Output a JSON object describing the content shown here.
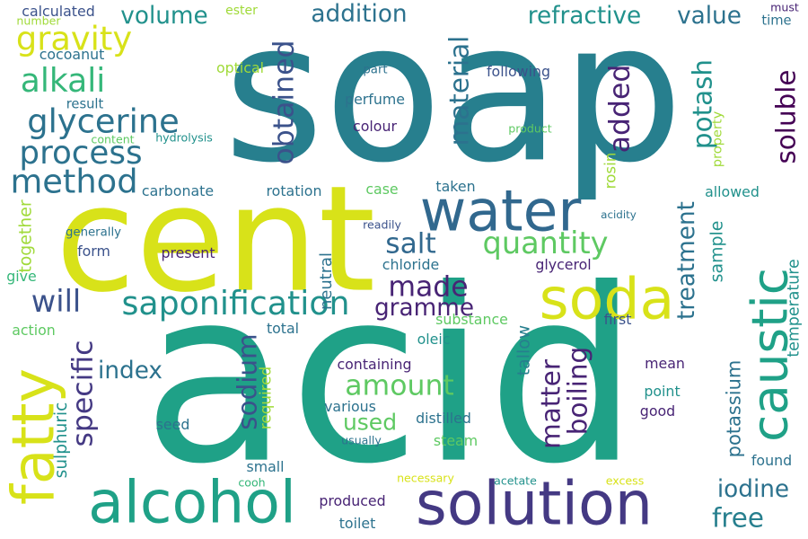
{
  "palette": {
    "yellow": "#d8e219",
    "yellow_green": "#a0da39",
    "light_green": "#5ec962",
    "green": "#35b779",
    "teal_green": "#1fa187",
    "teal": "#21918c",
    "steel_blue": "#277f8e",
    "blue": "#2c728e",
    "dark_blue": "#31688e",
    "indigo": "#3b528b",
    "purple_blue": "#443983",
    "deep_purple": "#482475",
    "violet": "#440154"
  },
  "words": [
    {
      "text": "soap",
      "color": "#277f8e",
      "vertical": false
    },
    {
      "text": "acid",
      "color": "#1fa187",
      "vertical": false
    },
    {
      "text": "cent",
      "color": "#d8e219",
      "vertical": false
    },
    {
      "text": "water",
      "color": "#31688e",
      "vertical": false
    },
    {
      "text": "solution",
      "color": "#443983",
      "vertical": false
    },
    {
      "text": "alcohol",
      "color": "#1fa187",
      "vertical": false
    },
    {
      "text": "caustic",
      "color": "#1fa187",
      "vertical": true
    },
    {
      "text": "soda",
      "color": "#d8e219",
      "vertical": false
    },
    {
      "text": "fatty",
      "color": "#d8e219",
      "vertical": true
    },
    {
      "text": "saponification",
      "color": "#21918c",
      "vertical": false
    },
    {
      "text": "glycerine",
      "color": "#2c728e",
      "vertical": false
    },
    {
      "text": "process",
      "color": "#2c728e",
      "vertical": false
    },
    {
      "text": "method",
      "color": "#2c728e",
      "vertical": false
    },
    {
      "text": "alkali",
      "color": "#35b779",
      "vertical": false
    },
    {
      "text": "gravity",
      "color": "#d8e219",
      "vertical": false
    },
    {
      "text": "obtained",
      "color": "#3b528b",
      "vertical": true
    },
    {
      "text": "material",
      "color": "#2c728e",
      "vertical": true
    },
    {
      "text": "added",
      "color": "#482475",
      "vertical": true
    },
    {
      "text": "potash",
      "color": "#21918c",
      "vertical": true
    },
    {
      "text": "soluble",
      "color": "#440154",
      "vertical": true
    },
    {
      "text": "quantity",
      "color": "#5ec962",
      "vertical": false
    },
    {
      "text": "salt",
      "color": "#31688e",
      "vertical": false
    },
    {
      "text": "will",
      "color": "#3b528b",
      "vertical": false
    },
    {
      "text": "made",
      "color": "#482475",
      "vertical": false
    },
    {
      "text": "gramme",
      "color": "#482475",
      "vertical": false
    },
    {
      "text": "specific",
      "color": "#443983",
      "vertical": true
    },
    {
      "text": "amount",
      "color": "#5ec962",
      "vertical": false
    },
    {
      "text": "used",
      "color": "#5ec962",
      "vertical": false
    },
    {
      "text": "sodium",
      "color": "#3b528b",
      "vertical": true
    },
    {
      "text": "matter",
      "color": "#482475",
      "vertical": true
    },
    {
      "text": "boiling",
      "color": "#482475",
      "vertical": true
    },
    {
      "text": "treatment",
      "color": "#2c728e",
      "vertical": true
    },
    {
      "text": "index",
      "color": "#2c728e",
      "vertical": false
    },
    {
      "text": "iodine",
      "color": "#2c728e",
      "vertical": false
    },
    {
      "text": "free",
      "color": "#277f8e",
      "vertical": false
    },
    {
      "text": "refractive",
      "color": "#21918c",
      "vertical": false
    },
    {
      "text": "value",
      "color": "#2c728e",
      "vertical": false
    },
    {
      "text": "addition",
      "color": "#2c728e",
      "vertical": false
    },
    {
      "text": "volume",
      "color": "#21918c",
      "vertical": false
    },
    {
      "text": "calculated",
      "color": "#3b528b",
      "vertical": false
    },
    {
      "text": "ester",
      "color": "#a0da39",
      "vertical": false
    },
    {
      "text": "number",
      "color": "#a0da39",
      "vertical": false
    },
    {
      "text": "cocoanut",
      "color": "#2c728e",
      "vertical": false
    },
    {
      "text": "optical",
      "color": "#a0da39",
      "vertical": false
    },
    {
      "text": "part",
      "color": "#2c728e",
      "vertical": false
    },
    {
      "text": "following",
      "color": "#3b528b",
      "vertical": false
    },
    {
      "text": "perfume",
      "color": "#2c728e",
      "vertical": false
    },
    {
      "text": "colour",
      "color": "#482475",
      "vertical": false
    },
    {
      "text": "result",
      "color": "#2c728e",
      "vertical": false
    },
    {
      "text": "content",
      "color": "#5ec962",
      "vertical": false
    },
    {
      "text": "hydrolysis",
      "color": "#21918c",
      "vertical": false
    },
    {
      "text": "product",
      "color": "#5ec962",
      "vertical": false
    },
    {
      "text": "property",
      "color": "#a0da39",
      "vertical": true
    },
    {
      "text": "rosin",
      "color": "#a0da39",
      "vertical": true
    },
    {
      "text": "must",
      "color": "#482475",
      "vertical": false
    },
    {
      "text": "time",
      "color": "#2c728e",
      "vertical": false
    },
    {
      "text": "carbonate",
      "color": "#2c728e",
      "vertical": false
    },
    {
      "text": "rotation",
      "color": "#2c728e",
      "vertical": false
    },
    {
      "text": "case",
      "color": "#5ec962",
      "vertical": false
    },
    {
      "text": "taken",
      "color": "#2c728e",
      "vertical": false
    },
    {
      "text": "allowed",
      "color": "#21918c",
      "vertical": false
    },
    {
      "text": "acidity",
      "color": "#2c728e",
      "vertical": false
    },
    {
      "text": "together",
      "color": "#a0da39",
      "vertical": true
    },
    {
      "text": "generally",
      "color": "#2c728e",
      "vertical": false
    },
    {
      "text": "readily",
      "color": "#3b528b",
      "vertical": false
    },
    {
      "text": "form",
      "color": "#3b528b",
      "vertical": false
    },
    {
      "text": "present",
      "color": "#482475",
      "vertical": false
    },
    {
      "text": "neutral",
      "color": "#2c728e",
      "vertical": true
    },
    {
      "text": "chloride",
      "color": "#2c728e",
      "vertical": false
    },
    {
      "text": "glycerol",
      "color": "#482475",
      "vertical": false
    },
    {
      "text": "sample",
      "color": "#21918c",
      "vertical": true
    },
    {
      "text": "give",
      "color": "#35b779",
      "vertical": false
    },
    {
      "text": "action",
      "color": "#5ec962",
      "vertical": false
    },
    {
      "text": "total",
      "color": "#2c728e",
      "vertical": false
    },
    {
      "text": "substance",
      "color": "#5ec962",
      "vertical": false
    },
    {
      "text": "first",
      "color": "#3b528b",
      "vertical": false
    },
    {
      "text": "oleic",
      "color": "#21918c",
      "vertical": false
    },
    {
      "text": "tallow",
      "color": "#277f8e",
      "vertical": true
    },
    {
      "text": "temperature",
      "color": "#21918c",
      "vertical": true
    },
    {
      "text": "containing",
      "color": "#482475",
      "vertical": false
    },
    {
      "text": "mean",
      "color": "#482475",
      "vertical": false
    },
    {
      "text": "point",
      "color": "#21918c",
      "vertical": false
    },
    {
      "text": "required",
      "color": "#a0da39",
      "vertical": true
    },
    {
      "text": "sulphuric",
      "color": "#21918c",
      "vertical": true
    },
    {
      "text": "seed",
      "color": "#2c728e",
      "vertical": false
    },
    {
      "text": "various",
      "color": "#2c728e",
      "vertical": false
    },
    {
      "text": "distilled",
      "color": "#2c728e",
      "vertical": false
    },
    {
      "text": "good",
      "color": "#482475",
      "vertical": false
    },
    {
      "text": "potassium",
      "color": "#2c728e",
      "vertical": true
    },
    {
      "text": "usually",
      "color": "#2c728e",
      "vertical": false
    },
    {
      "text": "steam",
      "color": "#5ec962",
      "vertical": false
    },
    {
      "text": "found",
      "color": "#2c728e",
      "vertical": false
    },
    {
      "text": "small",
      "color": "#2c728e",
      "vertical": false
    },
    {
      "text": "cooh",
      "color": "#35b779",
      "vertical": false
    },
    {
      "text": "necessary",
      "color": "#d8e219",
      "vertical": false
    },
    {
      "text": "acetate",
      "color": "#21918c",
      "vertical": false
    },
    {
      "text": "excess",
      "color": "#d8e219",
      "vertical": false
    },
    {
      "text": "produced",
      "color": "#482475",
      "vertical": false
    },
    {
      "text": "toilet",
      "color": "#2c728e",
      "vertical": false
    }
  ]
}
